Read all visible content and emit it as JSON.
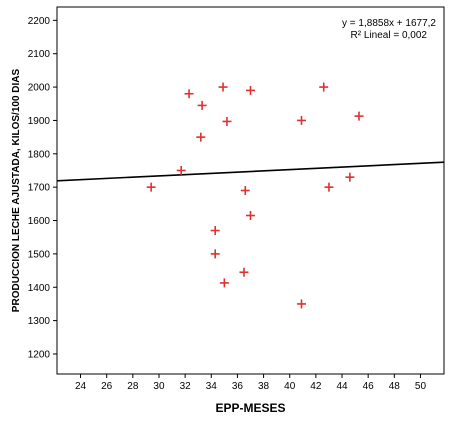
{
  "chart_data": {
    "type": "scatter",
    "title": "",
    "xlabel": "EPP-MESES",
    "ylabel": "PRODUCCION LECHE AJUSTADA, KILOS/100 DIAS",
    "xlim": [
      22.2,
      51.8
    ],
    "ylim": [
      1140,
      2240
    ],
    "xticks": [
      24,
      26,
      28,
      30,
      32,
      34,
      36,
      38,
      40,
      42,
      44,
      46,
      48,
      50
    ],
    "yticks": [
      1200,
      1300,
      1400,
      1500,
      1600,
      1700,
      1800,
      1900,
      2000,
      2100,
      2200
    ],
    "grid": false,
    "marker": "plus",
    "marker_color": "#e03030",
    "points": [
      {
        "x": 29.4,
        "y": 1700
      },
      {
        "x": 31.7,
        "y": 1750
      },
      {
        "x": 32.3,
        "y": 1980
      },
      {
        "x": 33.3,
        "y": 1945
      },
      {
        "x": 33.2,
        "y": 1850
      },
      {
        "x": 34.9,
        "y": 2000
      },
      {
        "x": 35.2,
        "y": 1897
      },
      {
        "x": 37.0,
        "y": 1990
      },
      {
        "x": 36.6,
        "y": 1690
      },
      {
        "x": 37.0,
        "y": 1615
      },
      {
        "x": 34.3,
        "y": 1570
      },
      {
        "x": 34.3,
        "y": 1500
      },
      {
        "x": 36.5,
        "y": 1445
      },
      {
        "x": 35.0,
        "y": 1413
      },
      {
        "x": 40.9,
        "y": 1900
      },
      {
        "x": 40.9,
        "y": 1350
      },
      {
        "x": 42.6,
        "y": 2000
      },
      {
        "x": 43.0,
        "y": 1700
      },
      {
        "x": 44.6,
        "y": 1730
      },
      {
        "x": 45.3,
        "y": 1913
      }
    ],
    "fit_line": {
      "slope": 1.8858,
      "intercept": 1677.2,
      "color": "#000000"
    },
    "annotations": {
      "equation": "y = 1,8858x + 1677,2",
      "r_squared": "R² Lineal = 0,002"
    }
  }
}
